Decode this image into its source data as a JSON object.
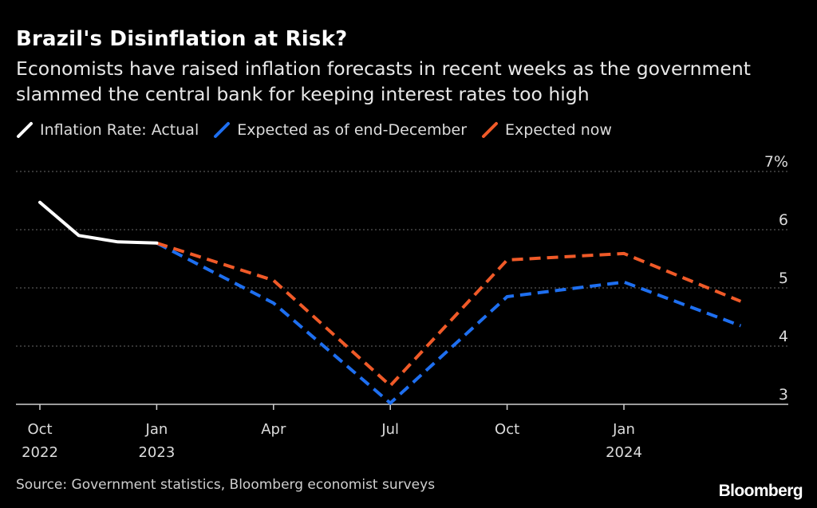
{
  "header": {
    "title": "Brazil's Disinflation at Risk?",
    "subtitle": "Economists have raised inflation forecasts in recent weeks as the government slammed the central bank for keeping interest rates too high"
  },
  "legend": [
    {
      "label": "Inflation Rate: Actual",
      "color": "#ffffff"
    },
    {
      "label": "Expected as of end-December",
      "color": "#1e6ff0"
    },
    {
      "label": "Expected now",
      "color": "#f05a28"
    }
  ],
  "footer": {
    "source": "Source: Government statistics, Bloomberg economist surveys",
    "brand": "Bloomberg"
  },
  "chart_data": {
    "type": "line",
    "ylim": [
      3,
      7
    ],
    "y_ticks": [
      "3",
      "4",
      "5",
      "6",
      "7%"
    ],
    "x_ticks": [
      {
        "line1": "Oct",
        "line2": "2022",
        "date": "2022-10"
      },
      {
        "line1": "Jan",
        "line2": "2023",
        "date": "2023-01"
      },
      {
        "line1": "Apr",
        "line2": "",
        "date": "2023-04"
      },
      {
        "line1": "Jul",
        "line2": "",
        "date": "2023-07"
      },
      {
        "line1": "Oct",
        "line2": "",
        "date": "2023-10"
      },
      {
        "line1": "Jan",
        "line2": "2024",
        "date": "2024-01"
      }
    ],
    "grid": true,
    "series": [
      {
        "name": "Inflation Rate: Actual",
        "color": "#ffffff",
        "dashed": false,
        "points": [
          {
            "x": "2022-10",
            "y": 6.47
          },
          {
            "x": "2022-11",
            "y": 5.9
          },
          {
            "x": "2022-12",
            "y": 5.79
          },
          {
            "x": "2023-01",
            "y": 5.77
          }
        ]
      },
      {
        "name": "Expected as of end-December",
        "color": "#1e6ff0",
        "dashed": true,
        "points": [
          {
            "x": "2023-01",
            "y": 5.77
          },
          {
            "x": "2023-04",
            "y": 4.74
          },
          {
            "x": "2023-07",
            "y": 3.02
          },
          {
            "x": "2023-10",
            "y": 4.85
          },
          {
            "x": "2024-01",
            "y": 5.1
          },
          {
            "x": "2024-04",
            "y": 4.35
          }
        ]
      },
      {
        "name": "Expected now",
        "color": "#f05a28",
        "dashed": true,
        "points": [
          {
            "x": "2023-01",
            "y": 5.77
          },
          {
            "x": "2023-04",
            "y": 5.13
          },
          {
            "x": "2023-07",
            "y": 3.32
          },
          {
            "x": "2023-10",
            "y": 5.48
          },
          {
            "x": "2024-01",
            "y": 5.59
          },
          {
            "x": "2024-04",
            "y": 4.77
          }
        ]
      }
    ]
  }
}
